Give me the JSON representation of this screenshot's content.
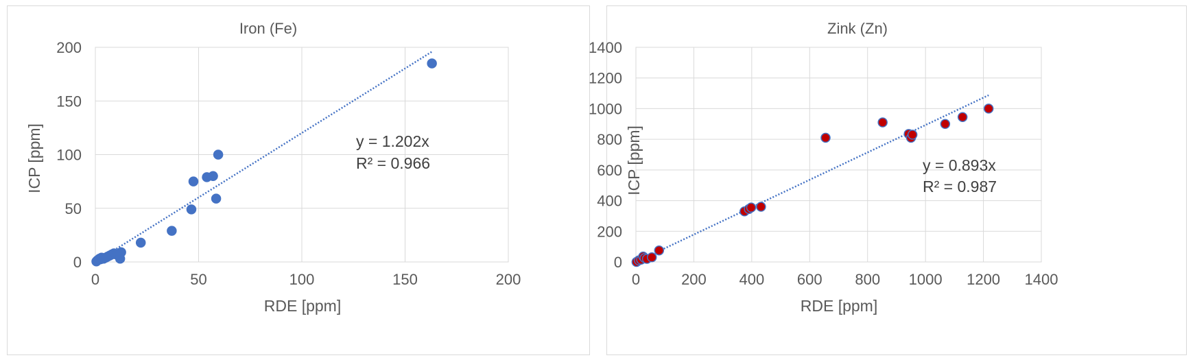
{
  "chart_data": [
    {
      "type": "scatter",
      "title": "Iron (Fe)",
      "xlabel": "RDE [ppm]",
      "ylabel": "ICP [ppm]",
      "xlim": [
        0,
        200
      ],
      "ylim": [
        0,
        200
      ],
      "xticks": [
        0,
        50,
        100,
        150,
        200
      ],
      "yticks": [
        0,
        50,
        100,
        150,
        200
      ],
      "grid": true,
      "legend": "none",
      "marker_color": "#4472c4",
      "marker_edge": "#4472c4",
      "trend_color": "#4472c4",
      "series": [
        {
          "x": [
            0.5,
            1,
            1.5,
            2,
            2.5,
            3,
            3.5,
            4,
            5,
            6,
            7,
            8,
            9,
            10,
            12,
            12.5,
            22,
            37,
            46.5,
            47.5,
            54,
            57,
            58.5,
            59.5,
            163
          ],
          "y": [
            0.5,
            1.5,
            2,
            3,
            2.5,
            4,
            3.5,
            3,
            4,
            5,
            6,
            7,
            8,
            7,
            3,
            9,
            18,
            29,
            49,
            75,
            79,
            80,
            59,
            100,
            185
          ]
        }
      ],
      "trendline": {
        "slope": 1.202,
        "x_end": 163,
        "equation": "y = 1.202x",
        "r2": "R² = 0.966"
      }
    },
    {
      "type": "scatter",
      "title": "Zink (Zn)",
      "xlabel": "RDE [ppm]",
      "ylabel": "ICP [ppm]",
      "xlim": [
        0,
        1400
      ],
      "ylim": [
        0,
        1400
      ],
      "xticks": [
        0,
        200,
        400,
        600,
        800,
        1000,
        1200,
        1400
      ],
      "yticks": [
        0,
        200,
        400,
        600,
        800,
        1000,
        1200,
        1400
      ],
      "grid": true,
      "legend": "none",
      "marker_color": "#c00000",
      "marker_edge": "#4472c4",
      "trend_color": "#4472c4",
      "series": [
        {
          "x": [
            2,
            10,
            18,
            25,
            30,
            38,
            55,
            80,
            375,
            390,
            398,
            432,
            655,
            852,
            942,
            950,
            955,
            1068,
            1128,
            1218
          ],
          "y": [
            0,
            10,
            15,
            35,
            25,
            20,
            30,
            75,
            330,
            345,
            355,
            360,
            810,
            910,
            835,
            810,
            830,
            900,
            945,
            1000
          ]
        }
      ],
      "trendline": {
        "slope": 0.893,
        "x_end": 1218,
        "equation": "y = 0.893x",
        "r2": "R² = 0.987"
      }
    }
  ]
}
